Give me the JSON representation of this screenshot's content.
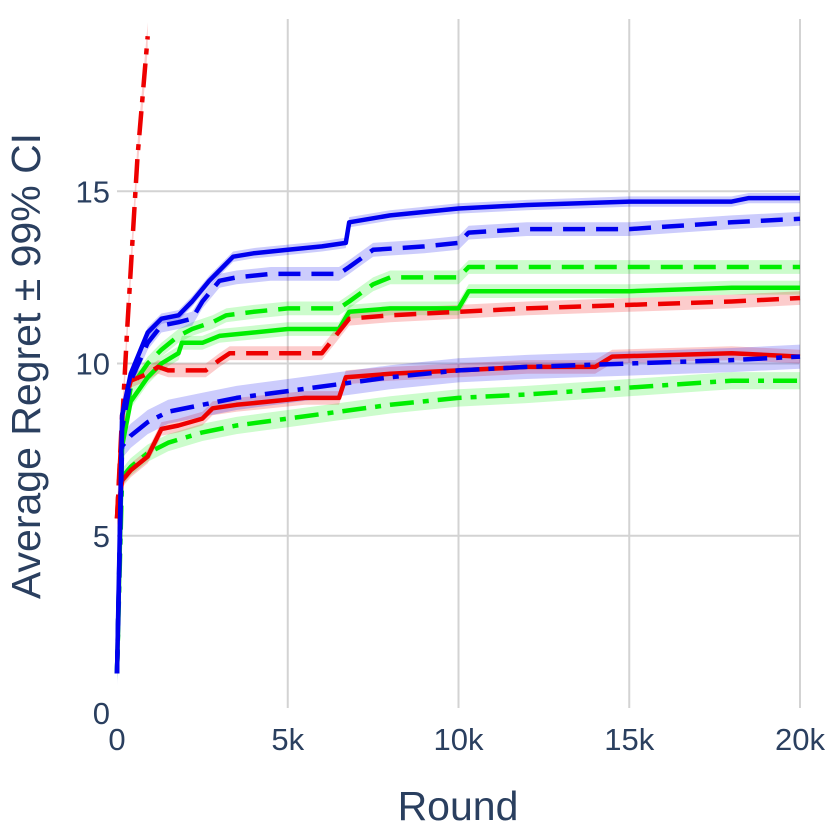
{
  "chart_data": {
    "type": "line",
    "title": "",
    "xlabel": "Round",
    "ylabel": "Average Regret ± 99% CI",
    "xlim": [
      0,
      20000
    ],
    "ylim": [
      0,
      20
    ],
    "x_ticks": [
      {
        "value": 0,
        "label": "0"
      },
      {
        "value": 5000,
        "label": "5k"
      },
      {
        "value": 10000,
        "label": "10k"
      },
      {
        "value": 15000,
        "label": "15k"
      },
      {
        "value": 20000,
        "label": "20k"
      }
    ],
    "y_ticks": [
      {
        "value": 0,
        "label": "0"
      },
      {
        "value": 5,
        "label": "5"
      },
      {
        "value": 10,
        "label": "10"
      },
      {
        "value": 15,
        "label": "15"
      }
    ],
    "grid": true,
    "legend": "none",
    "colors": {
      "blue": "#0000ee",
      "green": "#00ee00",
      "red": "#ee0000"
    },
    "series": [
      {
        "color": "blue",
        "dash": "solid",
        "ci": 0.15,
        "x": [
          0,
          150,
          400,
          900,
          1300,
          1800,
          2200,
          2700,
          3100,
          3400,
          4000,
          5000,
          6000,
          6700,
          6800,
          8000,
          10000,
          12000,
          15000,
          18000,
          18500,
          20000
        ],
        "y": [
          1.0,
          8.5,
          9.7,
          10.9,
          11.3,
          11.4,
          11.8,
          12.4,
          12.8,
          13.1,
          13.2,
          13.3,
          13.4,
          13.5,
          14.1,
          14.3,
          14.5,
          14.6,
          14.7,
          14.7,
          14.8,
          14.8
        ]
      },
      {
        "color": "blue",
        "dash": "dash",
        "ci": 0.2,
        "x": [
          0,
          150,
          400,
          900,
          1300,
          1800,
          2200,
          2500,
          3000,
          3500,
          4500,
          5500,
          6500,
          6800,
          7500,
          9000,
          10000,
          10300,
          12000,
          15000,
          18000,
          20000
        ],
        "y": [
          1.0,
          8.1,
          9.5,
          10.6,
          11.1,
          11.2,
          11.3,
          11.8,
          12.4,
          12.5,
          12.6,
          12.6,
          12.6,
          12.8,
          13.3,
          13.4,
          13.5,
          13.8,
          13.9,
          13.9,
          14.1,
          14.2
        ]
      },
      {
        "color": "blue",
        "dash": "dashdot",
        "ci": 0.35,
        "x": [
          0,
          150,
          400,
          900,
          1500,
          2500,
          3500,
          5000,
          6500,
          8000,
          10000,
          12000,
          15000,
          18000,
          20000
        ],
        "y": [
          1.0,
          7.6,
          7.9,
          8.3,
          8.6,
          8.8,
          9.0,
          9.2,
          9.4,
          9.6,
          9.8,
          9.9,
          10.0,
          10.1,
          10.2
        ]
      },
      {
        "color": "green",
        "dash": "solid",
        "ci": 0.2,
        "x": [
          0,
          150,
          400,
          900,
          1300,
          1800,
          1900,
          2500,
          3000,
          4000,
          5000,
          6500,
          6800,
          8000,
          10000,
          10300,
          12000,
          15000,
          18000,
          20000
        ],
        "y": [
          1.0,
          7.6,
          8.9,
          9.6,
          10.0,
          10.3,
          10.6,
          10.6,
          10.8,
          10.9,
          11.0,
          11.0,
          11.5,
          11.6,
          11.6,
          12.1,
          12.1,
          12.1,
          12.2,
          12.2
        ]
      },
      {
        "color": "green",
        "dash": "dash",
        "ci": 0.2,
        "x": [
          0,
          150,
          400,
          900,
          1300,
          1800,
          2200,
          2800,
          3200,
          4000,
          5000,
          6500,
          6800,
          7500,
          8000,
          9000,
          10000,
          10300,
          12000,
          15000,
          18000,
          20000
        ],
        "y": [
          1.0,
          7.8,
          9.3,
          10.0,
          10.4,
          10.8,
          11.0,
          11.2,
          11.4,
          11.5,
          11.6,
          11.6,
          11.8,
          12.3,
          12.5,
          12.5,
          12.5,
          12.8,
          12.8,
          12.8,
          12.8,
          12.8
        ]
      },
      {
        "color": "green",
        "dash": "dashdot",
        "ci": 0.25,
        "x": [
          0,
          150,
          400,
          900,
          1500,
          2500,
          3500,
          5000,
          6500,
          8000,
          10000,
          12000,
          15000,
          18000,
          20000
        ],
        "y": [
          1.0,
          6.7,
          7.0,
          7.4,
          7.7,
          8.0,
          8.2,
          8.4,
          8.6,
          8.8,
          9.0,
          9.1,
          9.3,
          9.5,
          9.5
        ]
      },
      {
        "color": "red",
        "dash": "solid",
        "ci": 0.2,
        "x": [
          0,
          150,
          400,
          900,
          1300,
          1800,
          2500,
          2800,
          3500,
          4500,
          5500,
          6500,
          6700,
          8000,
          10000,
          12000,
          14000,
          14500,
          18000,
          20000
        ],
        "y": [
          5.5,
          6.6,
          6.9,
          7.3,
          8.1,
          8.2,
          8.4,
          8.7,
          8.8,
          8.9,
          9.0,
          9.0,
          9.6,
          9.7,
          9.8,
          9.9,
          9.9,
          10.2,
          10.3,
          10.2
        ]
      },
      {
        "color": "red",
        "dash": "dash",
        "ci": 0.2,
        "x": [
          0,
          150,
          400,
          900,
          1200,
          1500,
          2000,
          2600,
          3000,
          3300,
          4500,
          6000,
          6800,
          8000,
          10000,
          12000,
          15000,
          18000,
          20000
        ],
        "y": [
          5.5,
          8.5,
          9.5,
          9.7,
          9.9,
          9.8,
          9.8,
          9.8,
          10.1,
          10.3,
          10.3,
          10.3,
          11.3,
          11.4,
          11.5,
          11.6,
          11.7,
          11.8,
          11.9
        ]
      },
      {
        "color": "red",
        "dash": "dashdot",
        "ci": 0.4,
        "x": [
          0,
          300,
          600,
          900
        ],
        "y": [
          5.5,
          11.0,
          16.0,
          19.5
        ]
      }
    ]
  }
}
